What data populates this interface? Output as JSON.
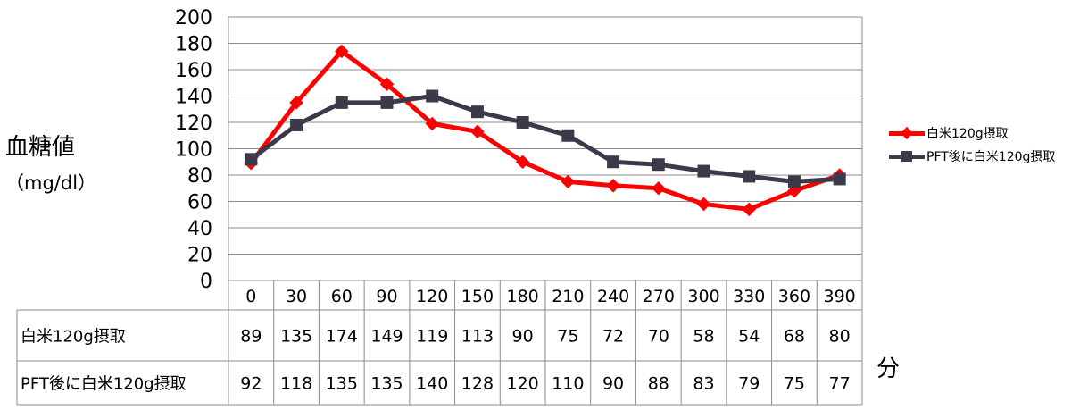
{
  "chart_data": {
    "type": "line",
    "ylabel": "血糖値",
    "ylabel_unit": "（mg/dl）",
    "xunit": "分",
    "ylim": [
      0,
      200
    ],
    "yticks": [
      0,
      20,
      40,
      60,
      80,
      100,
      120,
      140,
      160,
      180,
      200
    ],
    "grid": true,
    "legend_position": "right",
    "categories": [
      "0",
      "30",
      "60",
      "90",
      "120",
      "150",
      "180",
      "210",
      "240",
      "270",
      "300",
      "330",
      "360",
      "390"
    ],
    "series": [
      {
        "name": "白米120g摂取",
        "color": "#ff0000",
        "marker": "diamond",
        "values": [
          89,
          135,
          174,
          149,
          119,
          113,
          90,
          75,
          72,
          70,
          58,
          54,
          68,
          80
        ]
      },
      {
        "name": "PFT後に白米120g摂取",
        "color": "#3a3a4a",
        "marker": "square",
        "values": [
          92,
          118,
          135,
          135,
          140,
          128,
          120,
          110,
          90,
          88,
          83,
          79,
          75,
          77
        ]
      }
    ]
  }
}
